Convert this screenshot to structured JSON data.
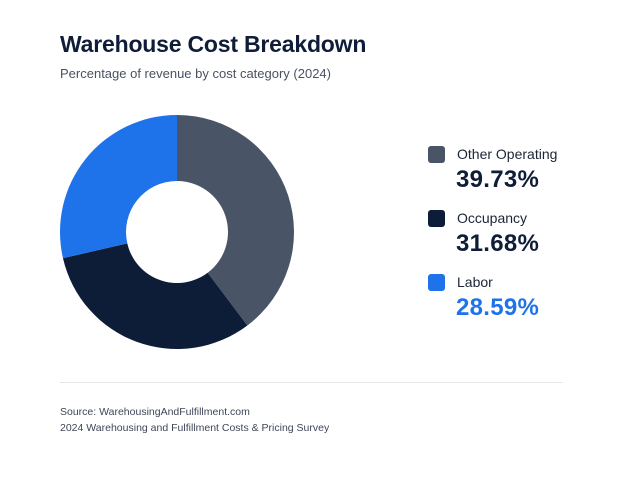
{
  "title": "Warehouse Cost Breakdown",
  "subtitle": "Percentage of revenue by cost category (2024)",
  "source": {
    "line1": "Source: WarehousingAndFulfillment.com",
    "line2": "2024 Warehousing and Fulfillment Costs & Pricing Survey"
  },
  "chart_data": {
    "type": "pie",
    "title": "Warehouse Cost Breakdown",
    "subtitle": "Percentage of revenue by cost category (2024)",
    "donut": true,
    "legend_position": "right",
    "slices": [
      {
        "name": "Other Operating",
        "value": 39.73,
        "label": "39.73%",
        "color": "#4a5467",
        "value_color": "#0f1d38"
      },
      {
        "name": "Occupancy",
        "value": 31.68,
        "label": "31.68%",
        "color": "#0d1d38",
        "value_color": "#0f1d38"
      },
      {
        "name": "Labor",
        "value": 28.59,
        "label": "28.59%",
        "color": "#1f73ea",
        "value_color": "#1f73ea"
      }
    ]
  }
}
